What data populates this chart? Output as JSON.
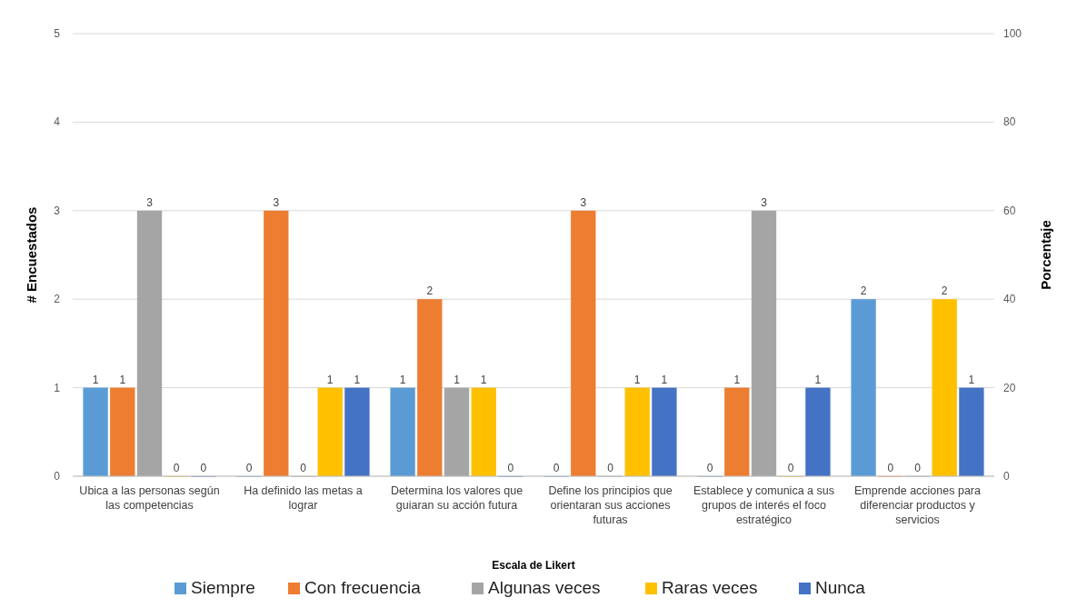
{
  "chart_data": {
    "type": "bar",
    "xlabel": "Escala de Likert",
    "ylabel": "# Encuestados",
    "y2label": "Porcentaje",
    "categories": [
      "Ubica a las personas según las competencias",
      "Ha definido las metas a lograr",
      "Determina los valores que guiaran su acción futura",
      "Define los principios que orientaran sus acciones futuras",
      "Establece y comunica a sus grupos de interés el foco estratégico",
      "Emprende acciones para diferenciar productos y servicios"
    ],
    "series": [
      {
        "name": "Siempre",
        "color": "#5b9bd5",
        "values": [
          1,
          0,
          1,
          0,
          0,
          2
        ]
      },
      {
        "name": "Con frecuencia",
        "color": "#ed7d31",
        "values": [
          1,
          3,
          2,
          3,
          1,
          0
        ]
      },
      {
        "name": "Algunas veces",
        "color": "#a5a5a5",
        "values": [
          3,
          0,
          1,
          0,
          3,
          0
        ]
      },
      {
        "name": "Raras veces",
        "color": "#ffc000",
        "values": [
          0,
          1,
          1,
          1,
          0,
          2
        ]
      },
      {
        "name": "Nunca",
        "color": "#4472c4",
        "values": [
          0,
          1,
          0,
          1,
          1,
          1
        ]
      }
    ],
    "ylim": [
      0,
      5
    ],
    "yticks": [
      0,
      1,
      2,
      3,
      4,
      5
    ],
    "y2lim": [
      0,
      100
    ],
    "y2ticks": [
      0,
      20,
      40,
      60,
      80,
      100
    ],
    "grid": "y",
    "data_labels": true,
    "legend": "bottom"
  }
}
